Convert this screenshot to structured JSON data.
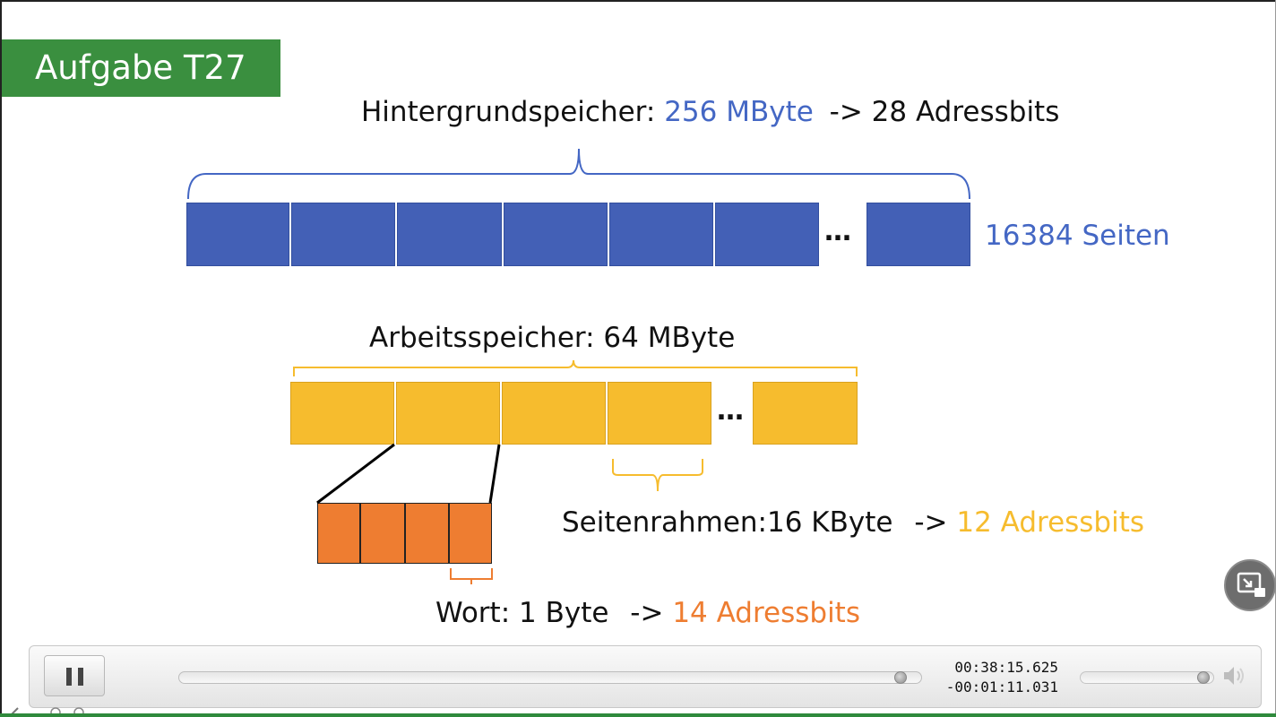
{
  "slide": {
    "title": "Aufgabe T27",
    "background_storage": {
      "label": "Hintergrundspeicher:",
      "size": "256 MByte",
      "address": "-> 28 Adressbits",
      "pages": "16384 Seiten",
      "ellipsis": "…"
    },
    "main_memory": {
      "label": "Arbeitsspeicher: 64 MByte",
      "ellipsis": "…"
    },
    "page_frame": {
      "label": "Seitenrahmen:16 KByte",
      "arrow": "->",
      "address": "12 Adressbits"
    },
    "word": {
      "label": "Wort: 1 Byte",
      "arrow": "->",
      "address": "14 Adressbits"
    }
  },
  "colors": {
    "title_bg": "#3a8f3f",
    "blue": "#4467c4",
    "blue_block": "#4360b6",
    "yellow": "#f6bc2e",
    "orange": "#ee7d31"
  },
  "player": {
    "pause_icon": "pause-icon",
    "elapsed": "00:38:15.625",
    "remaining": "-00:01:11.031",
    "progress": 0.98,
    "volume": 0.97,
    "volume_icon": "speaker-icon",
    "pip_icon": "picture-in-picture-icon"
  }
}
